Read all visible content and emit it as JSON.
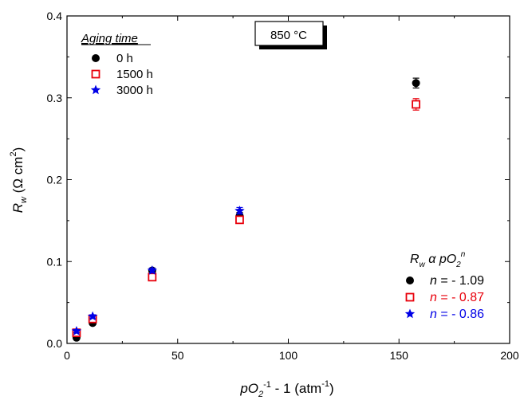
{
  "chart_data": {
    "type": "scatter",
    "xlim": [
      0,
      200
    ],
    "ylim": [
      0,
      0.4
    ],
    "x_ticks": [
      0,
      50,
      100,
      150,
      200
    ],
    "y_ticks": [
      0.0,
      0.1,
      0.2,
      0.3,
      0.4
    ],
    "x_tick_labels": [
      "0",
      "50",
      "100",
      "150",
      "200"
    ],
    "y_tick_labels": [
      "0.0",
      "0.1",
      "0.2",
      "0.3",
      "0.4"
    ],
    "xlabel": {
      "base": "pO",
      "sub": "2",
      "sup": "-1",
      "rest": " - 1 (atm",
      "sup2": "-1",
      "close": ")"
    },
    "ylabel": {
      "base": "R",
      "sub": "w",
      "rest": " (Ω cm",
      "sup": "2",
      "close": ")"
    },
    "annotation_box": "850 °C",
    "legend_title": "Aging time",
    "legend_position": "top-left",
    "grid": false,
    "series": [
      {
        "name": "0 h",
        "marker": "circle",
        "color": "#000000",
        "x": [
          4.3,
          11.6,
          38.5,
          78.0,
          157.7
        ],
        "y": [
          0.007,
          0.025,
          0.089,
          0.156,
          0.318
        ],
        "err": [
          0.002,
          0.002,
          0.003,
          0.004,
          0.006
        ]
      },
      {
        "name": "1500 h",
        "marker": "open-square",
        "color": "#e8000b",
        "x": [
          4.3,
          11.6,
          38.5,
          78.0,
          157.7
        ],
        "y": [
          0.013,
          0.03,
          0.081,
          0.151,
          0.292
        ],
        "err": [
          0.002,
          0.002,
          0.003,
          0.004,
          0.007
        ]
      },
      {
        "name": "3000 h",
        "marker": "star",
        "color": "#0000e6",
        "x": [
          4.3,
          11.6,
          38.5,
          78.0,
          157.7
        ],
        "y": [
          0.015,
          0.033,
          0.089,
          0.162,
          null
        ],
        "err": [
          0.002,
          0.002,
          0.003,
          0.004,
          null
        ]
      }
    ],
    "fit_legend": {
      "title": {
        "r": "R",
        "w": "w",
        "alpha": " α pO",
        "sub2": "2",
        "supn": "n"
      },
      "entries": [
        {
          "marker": "circle",
          "color": "#000000",
          "n_label": "n",
          "text": " = - 1.09"
        },
        {
          "marker": "open-square",
          "color": "#e8000b",
          "n_label": "n",
          "text": " = - 0.87"
        },
        {
          "marker": "star",
          "color": "#0000e6",
          "n_label": "n",
          "text": " = - 0.86"
        }
      ]
    }
  }
}
